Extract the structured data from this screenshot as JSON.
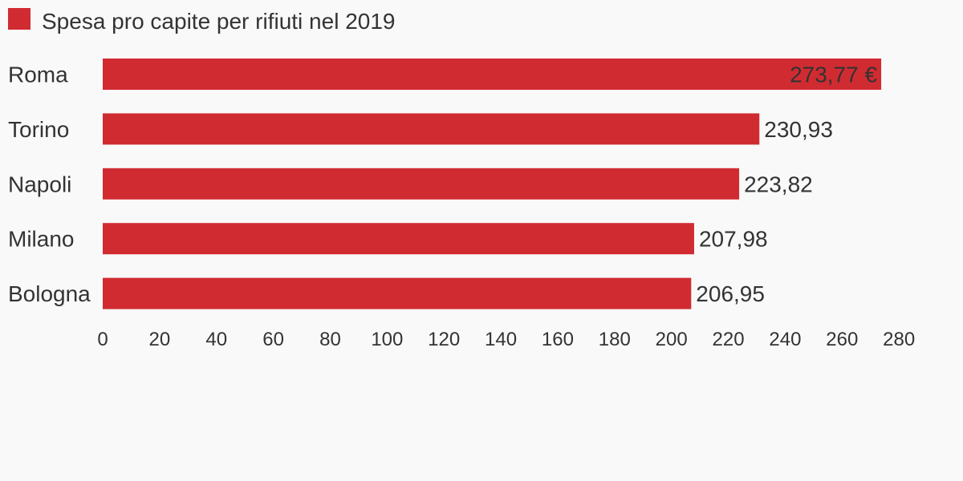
{
  "chart_data": {
    "type": "bar",
    "orientation": "horizontal",
    "legend": {
      "position": "top-left",
      "entries": [
        "Spesa pro capite per rifiuti nel 2019"
      ]
    },
    "series": [
      {
        "name": "Spesa pro capite per rifiuti nel 2019",
        "color": "#d12b32",
        "values": [
          273.77,
          230.93,
          223.82,
          207.98,
          206.95
        ],
        "labels": [
          "273,77 €",
          "230,93",
          "223,82",
          "207,98",
          "206,95"
        ]
      }
    ],
    "categories": [
      "Roma",
      "Torino",
      "Napoli",
      "Milano",
      "Bologna"
    ],
    "xlim": [
      0,
      280
    ],
    "xticks": [
      "0",
      "20",
      "40",
      "60",
      "80",
      "100",
      "120",
      "140",
      "160",
      "180",
      "200",
      "220",
      "240",
      "260",
      "280"
    ],
    "grid": false,
    "title": "",
    "xlabel": "",
    "ylabel": ""
  },
  "colors": {
    "bar": "#d12b32",
    "text": "#333333",
    "background": "#f9f9f9"
  }
}
